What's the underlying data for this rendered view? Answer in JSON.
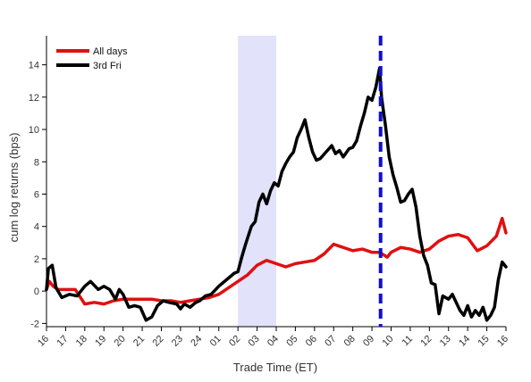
{
  "chart_data": {
    "type": "line",
    "xlabel": "Trade Time (ET)",
    "ylabel": "cum log returns (bps)",
    "x_tick_labels": [
      "16",
      "17",
      "18",
      "19",
      "20",
      "21",
      "22",
      "23",
      "24",
      "01",
      "02",
      "03",
      "04",
      "05",
      "06",
      "07",
      "08",
      "09",
      "10",
      "11",
      "12",
      "13",
      "14",
      "15",
      "16"
    ],
    "y_ticks": [
      -2,
      0,
      2,
      4,
      6,
      8,
      10,
      12,
      14
    ],
    "xlim": [
      0,
      24
    ],
    "ylim": [
      -2.2,
      15.8
    ],
    "grid": false,
    "legend_position": "top-left",
    "shaded_region": {
      "x_start": 10,
      "x_end": 12,
      "color": "#e2e2fb"
    },
    "vertical_marker": {
      "x": 17.45,
      "color": "#1010cc",
      "style": "dashed"
    },
    "series": [
      {
        "name": "All days",
        "color": "#e01010",
        "points": [
          [
            0,
            0.1
          ],
          [
            0.15,
            0.6
          ],
          [
            0.35,
            0.3
          ],
          [
            0.6,
            0.1
          ],
          [
            1,
            0.1
          ],
          [
            1.5,
            0.1
          ],
          [
            2,
            -0.8
          ],
          [
            2.5,
            -0.7
          ],
          [
            3,
            -0.8
          ],
          [
            3.5,
            -0.6
          ],
          [
            4,
            -0.5
          ],
          [
            4.5,
            -0.5
          ],
          [
            5,
            -0.5
          ],
          [
            5.5,
            -0.5
          ],
          [
            6,
            -0.6
          ],
          [
            6.5,
            -0.6
          ],
          [
            7,
            -0.7
          ],
          [
            7.5,
            -0.6
          ],
          [
            8,
            -0.5
          ],
          [
            8.5,
            -0.4
          ],
          [
            9,
            -0.2
          ],
          [
            9.5,
            0.2
          ],
          [
            10,
            0.6
          ],
          [
            10.5,
            1.0
          ],
          [
            11,
            1.6
          ],
          [
            11.5,
            1.9
          ],
          [
            12,
            1.7
          ],
          [
            12.5,
            1.5
          ],
          [
            13,
            1.7
          ],
          [
            13.5,
            1.8
          ],
          [
            14,
            1.9
          ],
          [
            14.5,
            2.3
          ],
          [
            15,
            2.9
          ],
          [
            15.5,
            2.7
          ],
          [
            16,
            2.5
          ],
          [
            16.5,
            2.6
          ],
          [
            17,
            2.4
          ],
          [
            17.4,
            2.4
          ],
          [
            17.8,
            2.1
          ],
          [
            18,
            2.4
          ],
          [
            18.5,
            2.7
          ],
          [
            19,
            2.6
          ],
          [
            19.5,
            2.4
          ],
          [
            20,
            2.6
          ],
          [
            20.5,
            3.1
          ],
          [
            21,
            3.4
          ],
          [
            21.5,
            3.5
          ],
          [
            22,
            3.3
          ],
          [
            22.5,
            2.5
          ],
          [
            23,
            2.8
          ],
          [
            23.5,
            3.4
          ],
          [
            23.8,
            4.5
          ],
          [
            24,
            3.6
          ]
        ]
      },
      {
        "name": "3rd Fri",
        "color": "#000000",
        "points": [
          [
            0,
            0.1
          ],
          [
            0.1,
            1.4
          ],
          [
            0.3,
            1.6
          ],
          [
            0.5,
            0.2
          ],
          [
            0.8,
            -0.4
          ],
          [
            1.2,
            -0.2
          ],
          [
            1.6,
            -0.3
          ],
          [
            2,
            0.3
          ],
          [
            2.3,
            0.6
          ],
          [
            2.7,
            0.1
          ],
          [
            3,
            0.3
          ],
          [
            3.3,
            0.1
          ],
          [
            3.6,
            -0.5
          ],
          [
            3.8,
            0.1
          ],
          [
            4,
            -0.2
          ],
          [
            4.3,
            -1.0
          ],
          [
            4.6,
            -0.9
          ],
          [
            4.9,
            -1.0
          ],
          [
            5.2,
            -1.8
          ],
          [
            5.5,
            -1.6
          ],
          [
            5.8,
            -0.9
          ],
          [
            6.1,
            -0.6
          ],
          [
            6.4,
            -0.7
          ],
          [
            6.8,
            -0.8
          ],
          [
            7,
            -1.1
          ],
          [
            7.2,
            -0.8
          ],
          [
            7.5,
            -1.0
          ],
          [
            7.8,
            -0.7
          ],
          [
            8,
            -0.6
          ],
          [
            8.3,
            -0.3
          ],
          [
            8.6,
            -0.2
          ],
          [
            9,
            0.3
          ],
          [
            9.4,
            0.7
          ],
          [
            9.8,
            1.1
          ],
          [
            10,
            1.2
          ],
          [
            10.2,
            2.1
          ],
          [
            10.4,
            2.9
          ],
          [
            10.7,
            4.0
          ],
          [
            10.9,
            4.3
          ],
          [
            11.1,
            5.5
          ],
          [
            11.3,
            6.0
          ],
          [
            11.5,
            5.4
          ],
          [
            11.7,
            6.2
          ],
          [
            11.9,
            6.7
          ],
          [
            12.1,
            6.5
          ],
          [
            12.3,
            7.4
          ],
          [
            12.5,
            7.9
          ],
          [
            12.7,
            8.3
          ],
          [
            12.9,
            8.6
          ],
          [
            13.1,
            9.5
          ],
          [
            13.3,
            10.0
          ],
          [
            13.5,
            10.6
          ],
          [
            13.7,
            9.5
          ],
          [
            13.9,
            8.6
          ],
          [
            14.1,
            8.1
          ],
          [
            14.3,
            8.2
          ],
          [
            14.6,
            8.6
          ],
          [
            14.9,
            9.0
          ],
          [
            15.1,
            8.5
          ],
          [
            15.3,
            8.7
          ],
          [
            15.5,
            8.3
          ],
          [
            15.8,
            8.8
          ],
          [
            16,
            8.9
          ],
          [
            16.2,
            9.3
          ],
          [
            16.4,
            10.2
          ],
          [
            16.6,
            11.0
          ],
          [
            16.8,
            12.0
          ],
          [
            17,
            11.8
          ],
          [
            17.2,
            12.6
          ],
          [
            17.4,
            13.8
          ],
          [
            17.5,
            12.0
          ],
          [
            17.7,
            10.3
          ],
          [
            17.9,
            8.3
          ],
          [
            18.1,
            7.2
          ],
          [
            18.3,
            6.4
          ],
          [
            18.5,
            5.5
          ],
          [
            18.7,
            5.6
          ],
          [
            18.9,
            6.0
          ],
          [
            19.1,
            6.3
          ],
          [
            19.3,
            5.2
          ],
          [
            19.5,
            3.4
          ],
          [
            19.7,
            2.2
          ],
          [
            19.9,
            1.6
          ],
          [
            20.1,
            0.5
          ],
          [
            20.3,
            0.4
          ],
          [
            20.5,
            -1.4
          ],
          [
            20.7,
            -0.3
          ],
          [
            21,
            -0.5
          ],
          [
            21.2,
            -0.2
          ],
          [
            21.4,
            -0.7
          ],
          [
            21.6,
            -1.2
          ],
          [
            21.8,
            -1.5
          ],
          [
            22,
            -0.9
          ],
          [
            22.2,
            -1.6
          ],
          [
            22.4,
            -1.2
          ],
          [
            22.6,
            -1.5
          ],
          [
            22.8,
            -1.0
          ],
          [
            23,
            -1.8
          ],
          [
            23.2,
            -1.5
          ],
          [
            23.4,
            -1.0
          ],
          [
            23.6,
            0.7
          ],
          [
            23.8,
            1.8
          ],
          [
            24,
            1.5
          ]
        ]
      }
    ]
  }
}
